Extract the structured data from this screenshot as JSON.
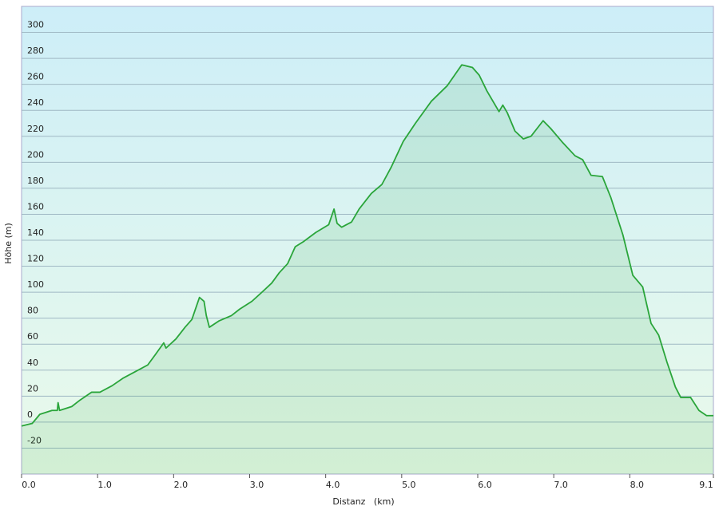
{
  "chart_data": {
    "type": "area",
    "xlabel": "Distanz   (km)",
    "ylabel": "Höhe (m)",
    "x": [
      0,
      0.14,
      0.24,
      0.4,
      0.47,
      0.48,
      0.5,
      0.66,
      0.77,
      0.92,
      1.03,
      1.19,
      1.34,
      1.5,
      1.66,
      1.76,
      1.87,
      1.9,
      2.03,
      2.15,
      2.24,
      2.34,
      2.4,
      2.43,
      2.47,
      2.6,
      2.76,
      2.87,
      3.03,
      3.18,
      3.29,
      3.39,
      3.5,
      3.6,
      3.71,
      3.87,
      4.04,
      4.11,
      4.15,
      4.21,
      4.34,
      4.44,
      4.6,
      4.74,
      4.86,
      5.02,
      5.18,
      5.39,
      5.6,
      5.79,
      5.93,
      6.02,
      6.12,
      6.28,
      6.33,
      6.39,
      6.49,
      6.6,
      6.7,
      6.86,
      6.96,
      7.12,
      7.28,
      7.38,
      7.49,
      7.64,
      7.75,
      7.91,
      8.04,
      8.17,
      8.28,
      8.38,
      8.49,
      8.6,
      8.67,
      8.8,
      8.91,
      9.01,
      9.1
    ],
    "values": [
      -3,
      -1,
      6,
      9,
      9,
      15,
      9,
      12,
      17,
      23,
      23,
      28,
      34,
      39,
      44,
      52,
      61,
      57,
      64,
      73,
      79,
      96,
      93,
      82,
      73,
      78,
      82,
      87,
      93,
      101,
      107,
      115,
      122,
      135,
      139,
      146,
      152,
      164,
      153,
      150,
      154,
      164,
      176,
      183,
      196,
      216,
      230,
      247,
      259,
      275,
      273,
      267,
      255,
      239,
      244,
      238,
      224,
      218,
      220,
      232,
      226,
      215,
      205,
      202,
      190,
      189,
      173,
      144,
      113,
      104,
      76,
      67,
      46,
      27,
      19,
      19,
      9,
      5,
      5
    ],
    "color": "#2aa53a",
    "xlim": [
      0,
      9.1
    ],
    "xticks": [
      {
        "value": 0,
        "label": "0.0"
      },
      {
        "value": 1,
        "label": "1.0"
      },
      {
        "value": 2,
        "label": "2.0"
      },
      {
        "value": 3,
        "label": "3.0"
      },
      {
        "value": 4,
        "label": "4.0"
      },
      {
        "value": 5,
        "label": "5.0"
      },
      {
        "value": 6,
        "label": "6.0"
      },
      {
        "value": 7,
        "label": "7.0"
      },
      {
        "value": 8,
        "label": "8.0"
      },
      9.1
    ],
    "ylim": [
      -40,
      320
    ],
    "yticks": [
      -20,
      0,
      20,
      40,
      60,
      80,
      100,
      120,
      140,
      160,
      180,
      200,
      220,
      240,
      260,
      280,
      300
    ],
    "grid": true
  }
}
